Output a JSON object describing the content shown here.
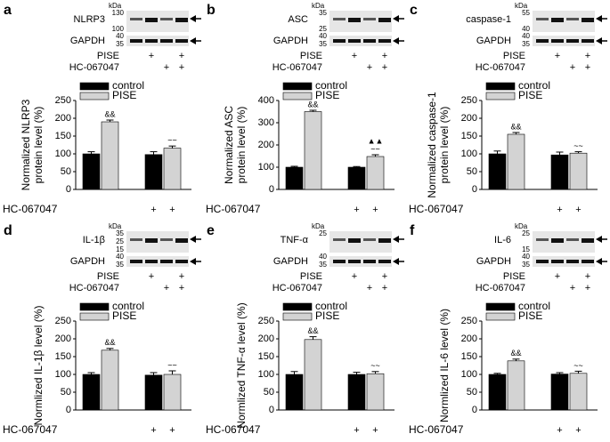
{
  "chart_data": [
    {
      "type": "bar",
      "panel": "a",
      "blot": {
        "unit": "kDa",
        "target": "NLRP3",
        "target_markers": [
          130,
          100
        ],
        "loading": "GAPDH",
        "loading_markers": [
          40,
          35
        ],
        "rows": [
          {
            "label": "PISE",
            "signs": [
              null,
              "+",
              null,
              "+"
            ]
          },
          {
            "label": "HC-067047",
            "signs": [
              null,
              null,
              "+",
              "+"
            ]
          }
        ]
      },
      "ylabel": [
        "Normalized NLRP3",
        "protein level (%)"
      ],
      "ylim": [
        0,
        250
      ],
      "yticks": [
        0,
        50,
        100,
        150,
        200,
        250
      ],
      "series": [
        {
          "name": "control",
          "color": "#000000",
          "values": [
            100,
            98
          ],
          "errors": [
            6,
            8
          ]
        },
        {
          "name": "PISE",
          "color": "#d3d3d3",
          "values": [
            190,
            116
          ],
          "errors": [
            5,
            6
          ],
          "annotations": [
            [
              "&&"
            ],
            [
              "~~"
            ]
          ]
        }
      ],
      "x_sign_row": {
        "label": "HC-067047",
        "signs": [
          null,
          null,
          "+",
          "+"
        ]
      }
    },
    {
      "type": "bar",
      "panel": "b",
      "blot": {
        "unit": "kDa",
        "target": "ASC",
        "target_markers": [
          35,
          25
        ],
        "loading": "GAPDH",
        "loading_markers": [
          40,
          35
        ],
        "rows": [
          {
            "label": "PISE",
            "signs": [
              null,
              "+",
              null,
              "+"
            ]
          },
          {
            "label": "HC-067047",
            "signs": [
              null,
              null,
              "+",
              "+"
            ]
          }
        ]
      },
      "ylabel": [
        "Normalized ASC",
        "protein level (%)"
      ],
      "ylim": [
        0,
        400
      ],
      "yticks": [
        0,
        100,
        200,
        300,
        400
      ],
      "series": [
        {
          "name": "control",
          "color": "#000000",
          "values": [
            100,
            100
          ],
          "errors": [
            4,
            3
          ]
        },
        {
          "name": "PISE",
          "color": "#d3d3d3",
          "values": [
            350,
            148
          ],
          "errors": [
            6,
            8
          ],
          "annotations": [
            [
              "&&"
            ],
            [
              "▲▲",
              "~~"
            ]
          ]
        }
      ],
      "x_sign_row": {
        "label": "HC-067047",
        "signs": [
          null,
          null,
          "+",
          "+"
        ]
      }
    },
    {
      "type": "bar",
      "panel": "c",
      "blot": {
        "unit": "kDa",
        "target": "caspase-1",
        "target_markers": [
          55,
          40
        ],
        "loading": "GAPDH",
        "loading_markers": [
          40,
          35
        ],
        "rows": [
          {
            "label": "PISE",
            "signs": [
              null,
              "+",
              null,
              "+"
            ]
          },
          {
            "label": "HC-067047",
            "signs": [
              null,
              null,
              "+",
              "+"
            ]
          }
        ]
      },
      "ylabel": [
        "Normalized caspase-1",
        "protein level (%)"
      ],
      "ylim": [
        0,
        250
      ],
      "yticks": [
        0,
        50,
        100,
        150,
        200,
        250
      ],
      "series": [
        {
          "name": "control",
          "color": "#000000",
          "values": [
            100,
            97
          ],
          "errors": [
            8,
            8
          ]
        },
        {
          "name": "PISE",
          "color": "#d3d3d3",
          "values": [
            155,
            102
          ],
          "errors": [
            5,
            4
          ],
          "annotations": [
            [
              "&&"
            ],
            [
              "~~"
            ]
          ]
        }
      ],
      "x_sign_row": {
        "label": "HC-067047",
        "signs": [
          null,
          null,
          "+",
          "+"
        ]
      }
    },
    {
      "type": "bar",
      "panel": "d",
      "blot": {
        "unit": "kDa",
        "target": "IL-1β",
        "target_markers": [
          35,
          25,
          15
        ],
        "loading": "GAPDH",
        "loading_markers": [
          40,
          35
        ],
        "rows": [
          {
            "label": "PISE",
            "signs": [
              null,
              "+",
              null,
              "+"
            ]
          },
          {
            "label": "HC-067047",
            "signs": [
              null,
              null,
              "+",
              "+"
            ]
          }
        ]
      },
      "ylabel": [
        "Normlized IL-1β level (%)"
      ],
      "ylim": [
        0,
        250
      ],
      "yticks": [
        0,
        50,
        100,
        150,
        200,
        250
      ],
      "series": [
        {
          "name": "control",
          "color": "#000000",
          "values": [
            100,
            98
          ],
          "errors": [
            5,
            7
          ]
        },
        {
          "name": "PISE",
          "color": "#d3d3d3",
          "values": [
            168,
            100
          ],
          "errors": [
            5,
            10
          ],
          "annotations": [
            [
              "&&"
            ],
            [
              "~~"
            ]
          ]
        }
      ],
      "x_sign_row": {
        "label": "HC-067047",
        "signs": [
          null,
          null,
          "+",
          "+"
        ]
      }
    },
    {
      "type": "bar",
      "panel": "e",
      "blot": {
        "unit": "kDa",
        "target": "TNF-α",
        "target_markers": [
          25
        ],
        "loading": "GAPDH",
        "loading_markers": [
          40,
          35
        ],
        "rows": [
          {
            "label": "PISE",
            "signs": [
              null,
              "+",
              null,
              "+"
            ]
          },
          {
            "label": "HC-067047",
            "signs": [
              null,
              null,
              "+",
              "+"
            ]
          }
        ]
      },
      "ylabel": [
        "Normlized TNF-α level (%)"
      ],
      "ylim": [
        0,
        250
      ],
      "yticks": [
        0,
        50,
        100,
        150,
        200,
        250
      ],
      "series": [
        {
          "name": "control",
          "color": "#000000",
          "values": [
            100,
            100
          ],
          "errors": [
            8,
            6
          ]
        },
        {
          "name": "PISE",
          "color": "#d3d3d3",
          "values": [
            198,
            102
          ],
          "errors": [
            8,
            6
          ],
          "annotations": [
            [
              "&&"
            ],
            [
              "~~"
            ]
          ]
        }
      ],
      "x_sign_row": {
        "label": "HC-067047",
        "signs": [
          null,
          null,
          "+",
          "+"
        ]
      }
    },
    {
      "type": "bar",
      "panel": "f",
      "blot": {
        "unit": "kDa",
        "target": "IL-6",
        "target_markers": [
          25,
          15
        ],
        "loading": "GAPDH",
        "loading_markers": [
          40,
          35
        ],
        "rows": [
          {
            "label": "PISE",
            "signs": [
              null,
              "+",
              null,
              "+"
            ]
          },
          {
            "label": "HC-067047",
            "signs": [
              null,
              null,
              "+",
              "+"
            ]
          }
        ]
      },
      "ylabel": [
        "Normlized IL-6 level (%)"
      ],
      "ylim": [
        0,
        250
      ],
      "yticks": [
        0,
        50,
        100,
        150,
        200,
        250
      ],
      "series": [
        {
          "name": "control",
          "color": "#000000",
          "values": [
            100,
            101
          ],
          "errors": [
            3,
            4
          ]
        },
        {
          "name": "PISE",
          "color": "#d3d3d3",
          "values": [
            138,
            103
          ],
          "errors": [
            5,
            6
          ],
          "annotations": [
            [
              "&&"
            ],
            [
              "~~"
            ]
          ]
        }
      ],
      "x_sign_row": {
        "label": "HC-067047",
        "signs": [
          null,
          null,
          "+",
          "+"
        ]
      }
    }
  ]
}
